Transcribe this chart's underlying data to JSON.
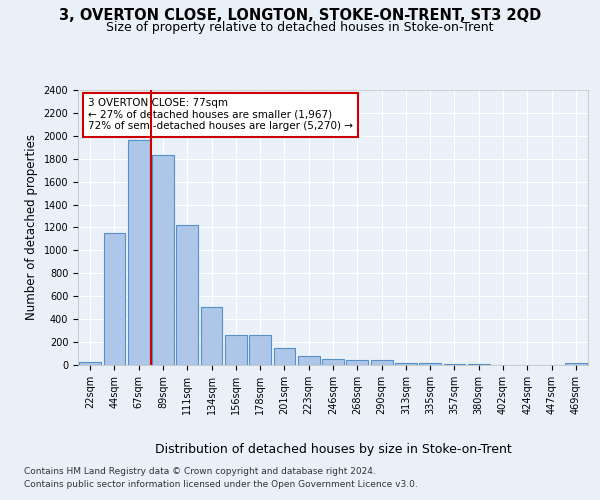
{
  "title": "3, OVERTON CLOSE, LONGTON, STOKE-ON-TRENT, ST3 2QD",
  "subtitle": "Size of property relative to detached houses in Stoke-on-Trent",
  "xlabel": "Distribution of detached houses by size in Stoke-on-Trent",
  "ylabel": "Number of detached properties",
  "bar_labels": [
    "22sqm",
    "44sqm",
    "67sqm",
    "89sqm",
    "111sqm",
    "134sqm",
    "156sqm",
    "178sqm",
    "201sqm",
    "223sqm",
    "246sqm",
    "268sqm",
    "290sqm",
    "313sqm",
    "335sqm",
    "357sqm",
    "380sqm",
    "402sqm",
    "424sqm",
    "447sqm",
    "469sqm"
  ],
  "bar_values": [
    30,
    1150,
    1960,
    1830,
    1220,
    510,
    265,
    265,
    150,
    80,
    50,
    45,
    40,
    20,
    15,
    12,
    5,
    3,
    2,
    2,
    15
  ],
  "bar_color": "#aec6e8",
  "bar_edge_color": "#5590c8",
  "bar_edge_width": 0.8,
  "red_line_index": 2.5,
  "annotation_title": "3 OVERTON CLOSE: 77sqm",
  "annotation_line1": "← 27% of detached houses are smaller (1,967)",
  "annotation_line2": "72% of semi-detached houses are larger (5,270) →",
  "annotation_box_color": "#ffffff",
  "annotation_box_edge": "#cc0000",
  "ylim": [
    0,
    2400
  ],
  "yticks": [
    0,
    200,
    400,
    600,
    800,
    1000,
    1200,
    1400,
    1600,
    1800,
    2000,
    2200,
    2400
  ],
  "footer1": "Contains HM Land Registry data © Crown copyright and database right 2024.",
  "footer2": "Contains public sector information licensed under the Open Government Licence v3.0.",
  "bg_color": "#eaf0f8",
  "plot_bg_color": "#eaf0f8",
  "grid_color": "#ffffff",
  "title_fontsize": 10.5,
  "subtitle_fontsize": 9,
  "xlabel_fontsize": 9,
  "ylabel_fontsize": 8.5,
  "tick_fontsize": 7,
  "annotation_fontsize": 7.5,
  "footer_fontsize": 6.5
}
